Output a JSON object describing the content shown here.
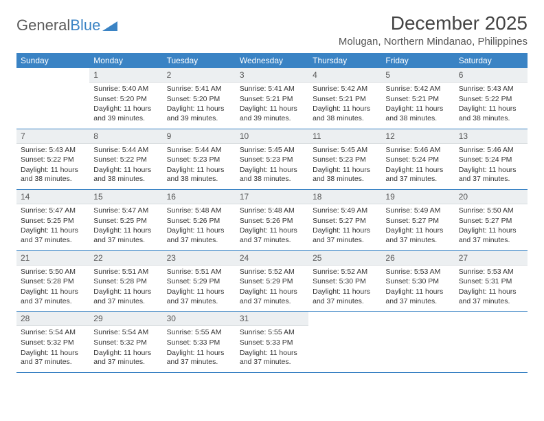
{
  "brand": {
    "part1": "General",
    "part2": "Blue"
  },
  "title": "December 2025",
  "location": "Molugan, Northern Mindanao, Philippines",
  "colors": {
    "header_bg": "#3a83c4",
    "header_fg": "#ffffff",
    "daynum_bg": "#eceff1",
    "row_border": "#3a83c4",
    "text": "#333333"
  },
  "daysOfWeek": [
    "Sunday",
    "Monday",
    "Tuesday",
    "Wednesday",
    "Thursday",
    "Friday",
    "Saturday"
  ],
  "weeks": [
    [
      null,
      {
        "n": "1",
        "sr": "5:40 AM",
        "ss": "5:20 PM",
        "dl": "11 hours and 39 minutes."
      },
      {
        "n": "2",
        "sr": "5:41 AM",
        "ss": "5:20 PM",
        "dl": "11 hours and 39 minutes."
      },
      {
        "n": "3",
        "sr": "5:41 AM",
        "ss": "5:21 PM",
        "dl": "11 hours and 39 minutes."
      },
      {
        "n": "4",
        "sr": "5:42 AM",
        "ss": "5:21 PM",
        "dl": "11 hours and 38 minutes."
      },
      {
        "n": "5",
        "sr": "5:42 AM",
        "ss": "5:21 PM",
        "dl": "11 hours and 38 minutes."
      },
      {
        "n": "6",
        "sr": "5:43 AM",
        "ss": "5:22 PM",
        "dl": "11 hours and 38 minutes."
      }
    ],
    [
      {
        "n": "7",
        "sr": "5:43 AM",
        "ss": "5:22 PM",
        "dl": "11 hours and 38 minutes."
      },
      {
        "n": "8",
        "sr": "5:44 AM",
        "ss": "5:22 PM",
        "dl": "11 hours and 38 minutes."
      },
      {
        "n": "9",
        "sr": "5:44 AM",
        "ss": "5:23 PM",
        "dl": "11 hours and 38 minutes."
      },
      {
        "n": "10",
        "sr": "5:45 AM",
        "ss": "5:23 PM",
        "dl": "11 hours and 38 minutes."
      },
      {
        "n": "11",
        "sr": "5:45 AM",
        "ss": "5:23 PM",
        "dl": "11 hours and 38 minutes."
      },
      {
        "n": "12",
        "sr": "5:46 AM",
        "ss": "5:24 PM",
        "dl": "11 hours and 37 minutes."
      },
      {
        "n": "13",
        "sr": "5:46 AM",
        "ss": "5:24 PM",
        "dl": "11 hours and 37 minutes."
      }
    ],
    [
      {
        "n": "14",
        "sr": "5:47 AM",
        "ss": "5:25 PM",
        "dl": "11 hours and 37 minutes."
      },
      {
        "n": "15",
        "sr": "5:47 AM",
        "ss": "5:25 PM",
        "dl": "11 hours and 37 minutes."
      },
      {
        "n": "16",
        "sr": "5:48 AM",
        "ss": "5:26 PM",
        "dl": "11 hours and 37 minutes."
      },
      {
        "n": "17",
        "sr": "5:48 AM",
        "ss": "5:26 PM",
        "dl": "11 hours and 37 minutes."
      },
      {
        "n": "18",
        "sr": "5:49 AM",
        "ss": "5:27 PM",
        "dl": "11 hours and 37 minutes."
      },
      {
        "n": "19",
        "sr": "5:49 AM",
        "ss": "5:27 PM",
        "dl": "11 hours and 37 minutes."
      },
      {
        "n": "20",
        "sr": "5:50 AM",
        "ss": "5:27 PM",
        "dl": "11 hours and 37 minutes."
      }
    ],
    [
      {
        "n": "21",
        "sr": "5:50 AM",
        "ss": "5:28 PM",
        "dl": "11 hours and 37 minutes."
      },
      {
        "n": "22",
        "sr": "5:51 AM",
        "ss": "5:28 PM",
        "dl": "11 hours and 37 minutes."
      },
      {
        "n": "23",
        "sr": "5:51 AM",
        "ss": "5:29 PM",
        "dl": "11 hours and 37 minutes."
      },
      {
        "n": "24",
        "sr": "5:52 AM",
        "ss": "5:29 PM",
        "dl": "11 hours and 37 minutes."
      },
      {
        "n": "25",
        "sr": "5:52 AM",
        "ss": "5:30 PM",
        "dl": "11 hours and 37 minutes."
      },
      {
        "n": "26",
        "sr": "5:53 AM",
        "ss": "5:30 PM",
        "dl": "11 hours and 37 minutes."
      },
      {
        "n": "27",
        "sr": "5:53 AM",
        "ss": "5:31 PM",
        "dl": "11 hours and 37 minutes."
      }
    ],
    [
      {
        "n": "28",
        "sr": "5:54 AM",
        "ss": "5:32 PM",
        "dl": "11 hours and 37 minutes."
      },
      {
        "n": "29",
        "sr": "5:54 AM",
        "ss": "5:32 PM",
        "dl": "11 hours and 37 minutes."
      },
      {
        "n": "30",
        "sr": "5:55 AM",
        "ss": "5:33 PM",
        "dl": "11 hours and 37 minutes."
      },
      {
        "n": "31",
        "sr": "5:55 AM",
        "ss": "5:33 PM",
        "dl": "11 hours and 37 minutes."
      },
      null,
      null,
      null
    ]
  ],
  "labels": {
    "sunrise": "Sunrise:",
    "sunset": "Sunset:",
    "daylight": "Daylight:"
  }
}
